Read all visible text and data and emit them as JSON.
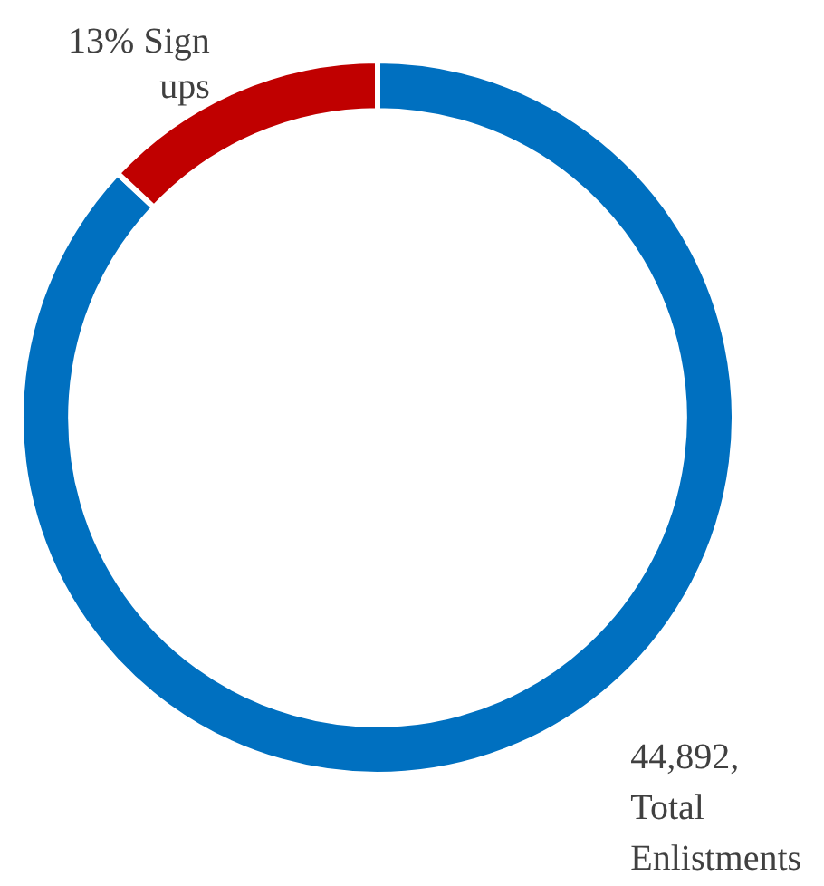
{
  "chart_data": {
    "type": "donut",
    "categories": [
      "44,892, Total Enlistments",
      "Sign ups"
    ],
    "values": [
      87,
      13
    ],
    "colors": [
      "#0070c0",
      "#c00000"
    ],
    "value_labels": [
      null,
      "13%"
    ],
    "legend": false
  }
}
